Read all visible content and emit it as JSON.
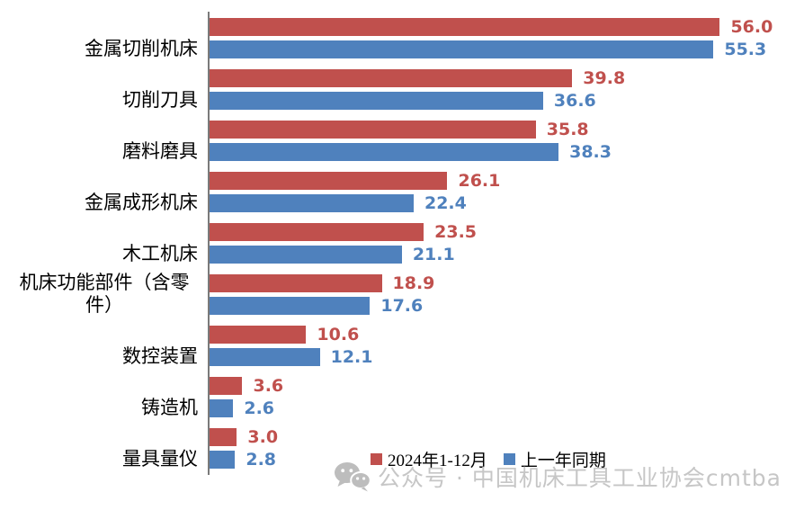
{
  "chart_data": {
    "type": "bar",
    "orientation": "horizontal",
    "title": "",
    "xlabel": "",
    "ylabel": "",
    "grid": false,
    "xlim": [
      0,
      60
    ],
    "value_label_decimals": 1,
    "categories": [
      "金属切削机床",
      "切削刀具",
      "磨料磨具",
      "金属成形机床",
      "木工机床",
      "机床功能部件（含零件）",
      "数控装置",
      "铸造机",
      "量具量仪"
    ],
    "series": [
      {
        "name": "2024年1-12月",
        "color": "#C0504D",
        "values": [
          56.0,
          39.8,
          35.8,
          26.1,
          23.5,
          18.9,
          10.6,
          3.6,
          3.0
        ]
      },
      {
        "name": "上一年同期",
        "color": "#4F81BD",
        "values": [
          55.3,
          36.6,
          38.3,
          22.4,
          21.1,
          17.6,
          12.1,
          2.6,
          2.8
        ]
      }
    ],
    "legend_position": "bottom-center-inside"
  },
  "legend": {
    "items": [
      {
        "label": "2024年1-12月",
        "color": "#C0504D"
      },
      {
        "label": "上一年同期",
        "color": "#4F81BD"
      }
    ]
  },
  "watermark": {
    "icon": "wechat-icon",
    "text": "公众号 · 中国机床工具工业协会cmtba",
    "color": "#C6C6C6",
    "icon_color": "#BDBDBD"
  },
  "colors": {
    "axis_line": "#7A7A7A",
    "background": "#FFFFFF"
  }
}
